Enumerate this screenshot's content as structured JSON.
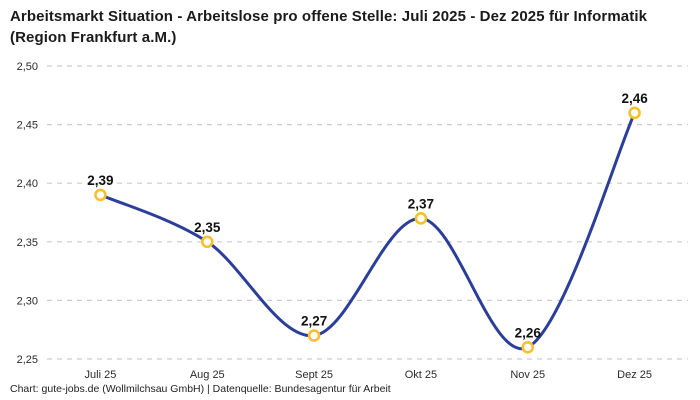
{
  "title": "Arbeitsmarkt Situation - Arbeitslose pro offene Stelle: Juli 2025 - Dez 2025 für Informatik (Region Frankfurt a.M.)",
  "footer": "Chart: gute-jobs.de (Wollmilchsau GmbH) | Datenquelle: Bundesagentur für Arbeit",
  "chart_data": {
    "type": "line",
    "title": "Arbeitsmarkt Situation - Arbeitslose pro offene Stelle: Juli 2025 - Dez 2025 für Informatik (Region Frankfurt a.M.)",
    "categories": [
      "Juli 25",
      "Aug 25",
      "Sept 25",
      "Okt 25",
      "Nov 25",
      "Dez 25"
    ],
    "values": [
      2.39,
      2.35,
      2.27,
      2.37,
      2.26,
      2.46
    ],
    "value_labels": [
      "2,39",
      "2,35",
      "2,27",
      "2,37",
      "2,26",
      "2,46"
    ],
    "y_ticks": [
      2.25,
      2.3,
      2.35,
      2.4,
      2.45,
      2.5
    ],
    "y_tick_labels": [
      "2,25",
      "2,30",
      "2,35",
      "2,40",
      "2,45",
      "2,50"
    ],
    "ylim": [
      2.25,
      2.5
    ],
    "xlabel": "",
    "ylabel": "",
    "grid": "dashed-horizontal",
    "legend": "none",
    "line_smooth": true,
    "colors": {
      "line": "#2a3e9a",
      "marker_stroke": "#f8bf2e",
      "marker_fill": "#ffffff",
      "grid": "#cccccc",
      "axis_text": "#2b2b2b",
      "label_text": "#111111",
      "background": "#ffffff"
    }
  }
}
